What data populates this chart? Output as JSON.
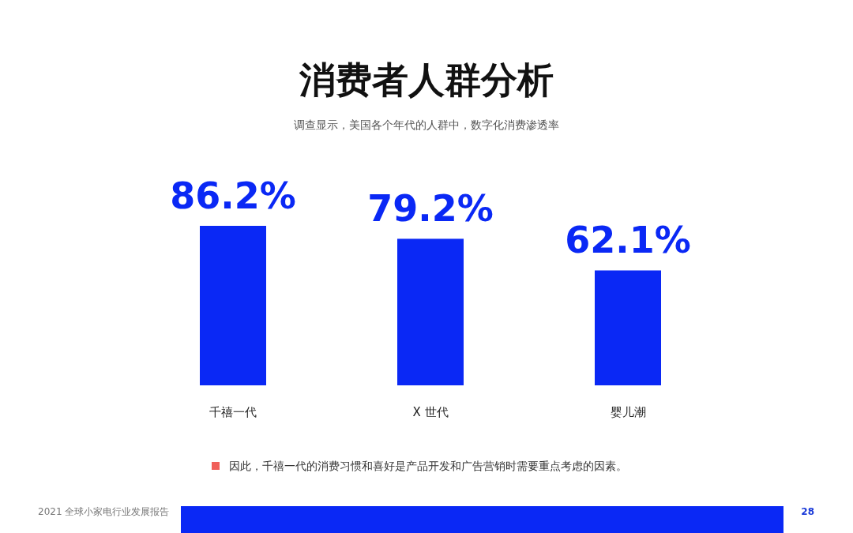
{
  "chart_data": {
    "type": "bar",
    "title": "消费者人群分析",
    "subtitle": "调查显示，美国各个年代的人群中，数字化消费渗透率",
    "categories": [
      "千禧一代",
      "X 世代",
      "婴儿潮"
    ],
    "values": [
      86.2,
      79.2,
      62.1
    ],
    "value_labels": [
      "86.2%",
      "79.2%",
      "62.1%"
    ],
    "color": "#0a28f5",
    "annotations": [
      "因此，千禧一代的消费习惯和喜好是产品开发和广告营销时需要重点考虑的因素。",
      "2021 全球小家电行业发展报告",
      "28"
    ]
  }
}
